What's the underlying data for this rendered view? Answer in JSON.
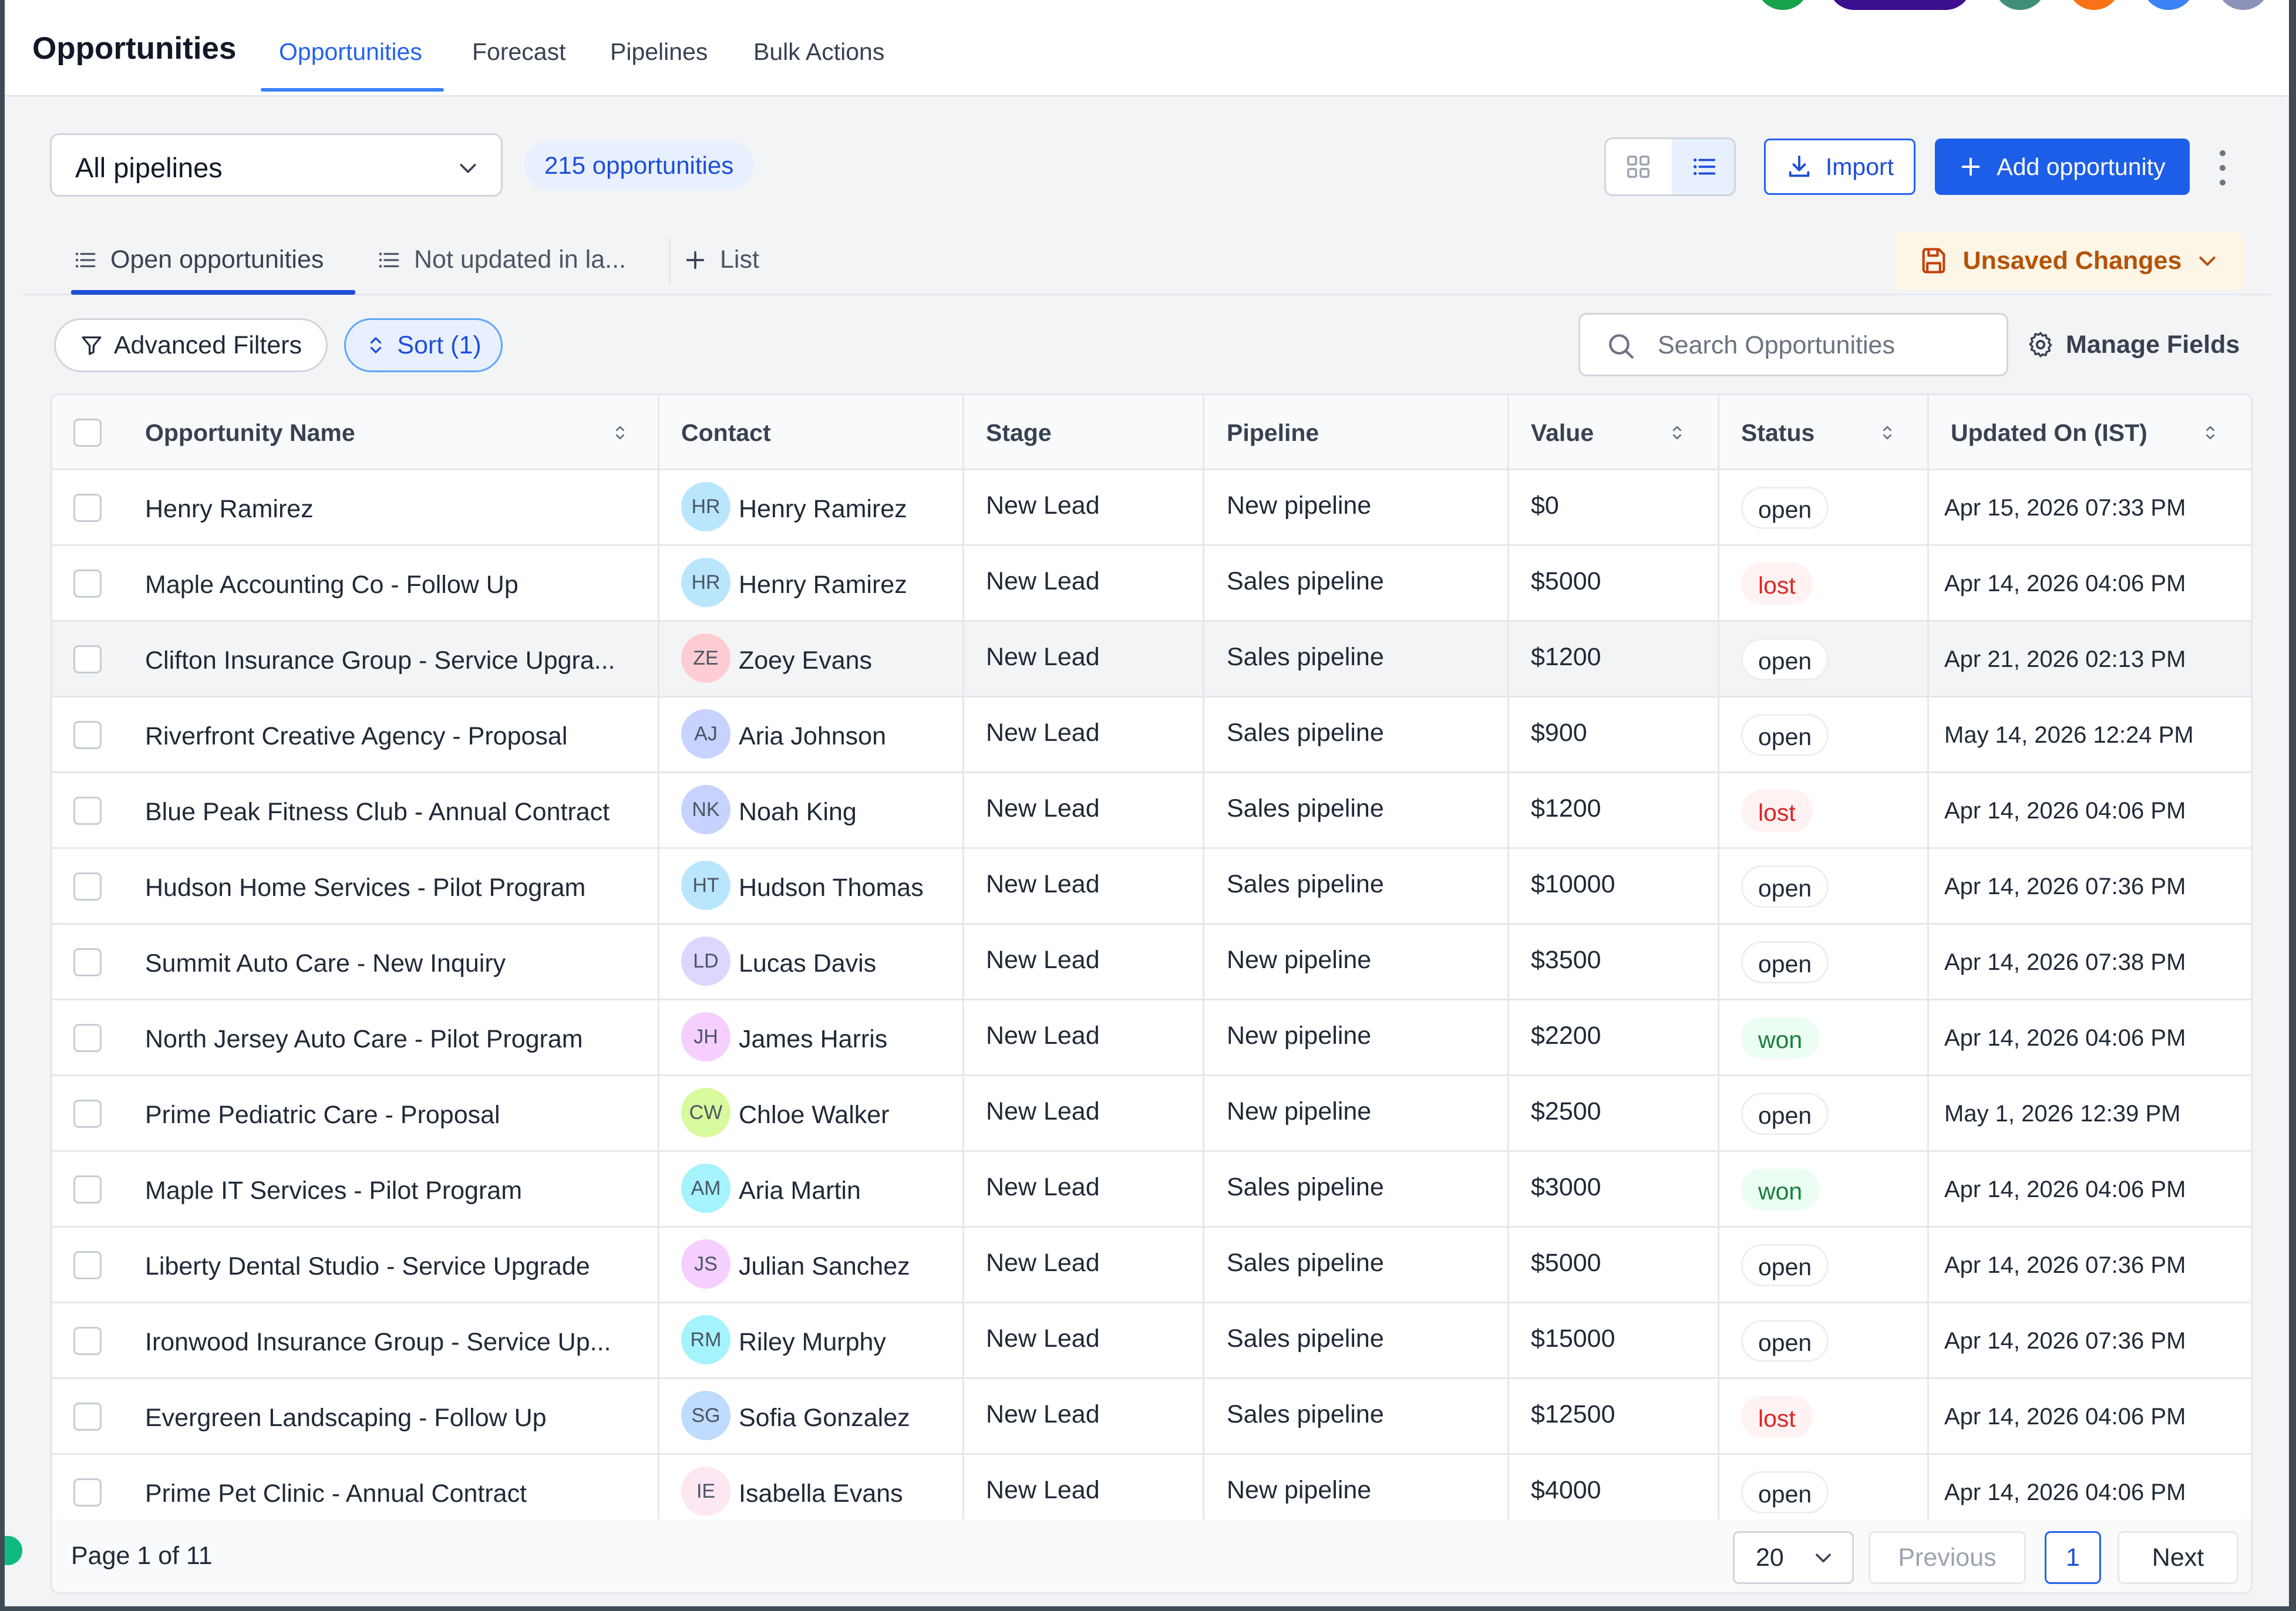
{
  "header": {
    "app_title": "Opportunities",
    "tabs": [
      {
        "label": "Opportunities",
        "active": true
      },
      {
        "label": "Forecast",
        "active": false
      },
      {
        "label": "Pipelines",
        "active": false
      },
      {
        "label": "Bulk Actions",
        "active": false
      }
    ]
  },
  "toolbar": {
    "pipeline_select": "All pipelines",
    "count_label": "215 opportunities",
    "view_modes": [
      "grid-icon",
      "list-icon"
    ],
    "active_view": "list",
    "import_label": "Import",
    "add_label": "Add opportunity"
  },
  "list_tabs": {
    "items": [
      {
        "label": "Open opportunities",
        "active": true
      },
      {
        "label": "Not updated in la...",
        "active": false
      }
    ],
    "add_list_label": "List",
    "unsaved_label": "Unsaved Changes"
  },
  "filters": {
    "advanced_label": "Advanced Filters",
    "sort_label": "Sort (1)",
    "search_placeholder": "Search Opportunities",
    "manage_fields_label": "Manage Fields"
  },
  "table": {
    "columns": [
      "Opportunity Name",
      "Contact",
      "Stage",
      "Pipeline",
      "Value",
      "Status",
      "Updated On (IST)"
    ],
    "rows": [
      {
        "name": "Henry Ramirez",
        "initials": "HR",
        "contact": "Henry Ramirez",
        "stage": "New Lead",
        "pipeline": "New pipeline",
        "value": "$0",
        "status": "open",
        "updated": "Apr 15, 2026 07:33 PM"
      },
      {
        "name": "Maple Accounting Co - Follow Up",
        "initials": "HR",
        "contact": "Henry Ramirez",
        "stage": "New Lead",
        "pipeline": "Sales pipeline",
        "value": "$5000",
        "status": "lost",
        "updated": "Apr 14, 2026 04:06 PM"
      },
      {
        "name": "Clifton Insurance Group - Service Upgra...",
        "initials": "ZE",
        "contact": "Zoey Evans",
        "stage": "New Lead",
        "pipeline": "Sales pipeline",
        "value": "$1200",
        "status": "open",
        "updated": "Apr 21, 2026 02:13 PM"
      },
      {
        "name": "Riverfront Creative Agency - Proposal",
        "initials": "AJ",
        "contact": "Aria Johnson",
        "stage": "New Lead",
        "pipeline": "Sales pipeline",
        "value": "$900",
        "status": "open",
        "updated": "May 14, 2026 12:24 PM"
      },
      {
        "name": "Blue Peak Fitness Club - Annual Contract",
        "initials": "NK",
        "contact": "Noah King",
        "stage": "New Lead",
        "pipeline": "Sales pipeline",
        "value": "$1200",
        "status": "lost",
        "updated": "Apr 14, 2026 04:06 PM"
      },
      {
        "name": "Hudson Home Services - Pilot Program",
        "initials": "HT",
        "contact": "Hudson Thomas",
        "stage": "New Lead",
        "pipeline": "Sales pipeline",
        "value": "$10000",
        "status": "open",
        "updated": "Apr 14, 2026 07:36 PM"
      },
      {
        "name": "Summit Auto Care - New Inquiry",
        "initials": "LD",
        "contact": "Lucas Davis",
        "stage": "New Lead",
        "pipeline": "New pipeline",
        "value": "$3500",
        "status": "open",
        "updated": "Apr 14, 2026 07:38 PM"
      },
      {
        "name": "North Jersey Auto Care - Pilot Program",
        "initials": "JH",
        "contact": "James Harris",
        "stage": "New Lead",
        "pipeline": "New pipeline",
        "value": "$2200",
        "status": "won",
        "updated": "Apr 14, 2026 04:06 PM"
      },
      {
        "name": "Prime Pediatric Care - Proposal",
        "initials": "CW",
        "contact": "Chloe Walker",
        "stage": "New Lead",
        "pipeline": "New pipeline",
        "value": "$2500",
        "status": "open",
        "updated": "May 1, 2026 12:39 PM"
      },
      {
        "name": "Maple IT Services - Pilot Program",
        "initials": "AM",
        "contact": "Aria Martin",
        "stage": "New Lead",
        "pipeline": "Sales pipeline",
        "value": "$3000",
        "status": "won",
        "updated": "Apr 14, 2026 04:06 PM"
      },
      {
        "name": "Liberty Dental Studio - Service Upgrade",
        "initials": "JS",
        "contact": "Julian Sanchez",
        "stage": "New Lead",
        "pipeline": "Sales pipeline",
        "value": "$5000",
        "status": "open",
        "updated": "Apr 14, 2026 07:36 PM"
      },
      {
        "name": "Ironwood Insurance Group - Service Up...",
        "initials": "RM",
        "contact": "Riley Murphy",
        "stage": "New Lead",
        "pipeline": "Sales pipeline",
        "value": "$15000",
        "status": "open",
        "updated": "Apr 14, 2026 07:36 PM"
      },
      {
        "name": "Evergreen Landscaping - Follow Up",
        "initials": "SG",
        "contact": "Sofia Gonzalez",
        "stage": "New Lead",
        "pipeline": "Sales pipeline",
        "value": "$12500",
        "status": "lost",
        "updated": "Apr 14, 2026 04:06 PM"
      },
      {
        "name": "Prime Pet Clinic - Annual Contract",
        "initials": "IE",
        "contact": "Isabella Evans",
        "stage": "New Lead",
        "pipeline": "New pipeline",
        "value": "$4000",
        "status": "open",
        "updated": "Apr 14, 2026 04:06 PM"
      }
    ],
    "avatar_colors": [
      "#bae6fd",
      "#bae6fd",
      "#fecdd3",
      "#c7d2fe",
      "#c7d2fe",
      "#bae6fd",
      "#ddd6fe",
      "#f5d0fe",
      "#d9f99d",
      "#a5f3fc",
      "#f5d0fe",
      "#a5f3fc",
      "#bfdbfe",
      "#fce7f3"
    ]
  },
  "pagination": {
    "page_info": "Page 1 of 11",
    "per_page": "20",
    "previous_label": "Previous",
    "current_page": "1",
    "next_label": "Next"
  },
  "colors": {
    "accent": "#1d5ee8",
    "status_lost": "#dc2626",
    "status_won": "#15803d",
    "unsaved": "#b45309"
  }
}
